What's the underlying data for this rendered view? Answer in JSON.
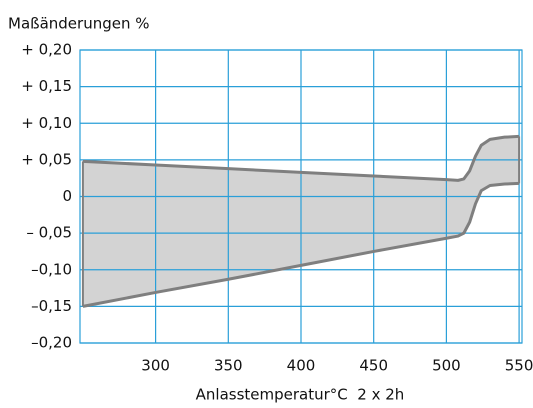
{
  "chart_data": {
    "type": "band",
    "title": "Maßänderungen %",
    "x_label": "Anlasstemperatur°C  2 x 2h",
    "x": [
      250,
      300,
      350,
      400,
      450,
      500,
      508,
      512,
      516,
      520,
      524,
      530,
      540,
      550
    ],
    "series": [
      {
        "color": "#7f7f7f",
        "values": [
          0.048,
          0.043,
          0.038,
          0.033,
          0.028,
          0.023,
          0.022,
          0.024,
          0.035,
          0.055,
          0.07,
          0.078,
          0.081,
          0.082
        ]
      },
      {
        "color": "#7f7f7f",
        "values": [
          -0.15,
          -0.131,
          -0.113,
          -0.094,
          -0.075,
          -0.057,
          -0.054,
          -0.05,
          -0.035,
          -0.01,
          0.008,
          0.015,
          0.017,
          0.018
        ]
      }
    ],
    "fill_color": "#d3d3d3",
    "grid_color": "#2a9fd8",
    "xlim": [
      248,
      552
    ],
    "xticks": [
      300,
      350,
      400,
      450,
      500,
      550
    ],
    "ylim": [
      -0.2,
      0.2
    ],
    "yticks": [
      {
        "value": 0.2,
        "label": "+ 0,20"
      },
      {
        "value": 0.15,
        "label": "+ 0,15"
      },
      {
        "value": 0.1,
        "label": "+ 0,10"
      },
      {
        "value": 0.05,
        "label": "+ 0,05"
      },
      0,
      {
        "value": -0.05,
        "label": "– 0,05"
      },
      {
        "value": -0.1,
        "label": "–0,10"
      },
      {
        "value": -0.15,
        "label": "–0,15"
      },
      {
        "value": -0.2,
        "label": "–0,20"
      }
    ],
    "grid": true
  }
}
